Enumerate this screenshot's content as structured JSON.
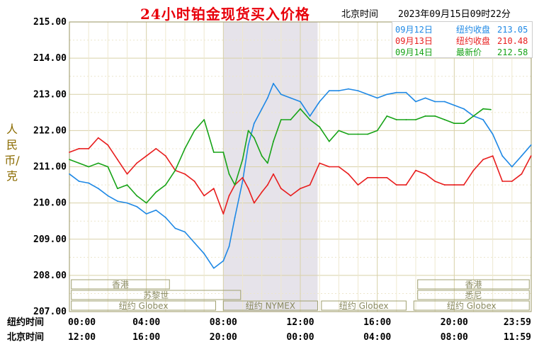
{
  "header": {
    "title": "24小时铂金现货买入价格",
    "beijing_time_label": "北京时间",
    "timestamp": "2023年09月15日09时22分"
  },
  "chart_data": {
    "type": "line",
    "title": "24小时铂金现货买入价格",
    "ylabel": "人民币/克",
    "ylim": [
      207,
      215
    ],
    "y_ticks": [
      "215.00",
      "214.00",
      "213.00",
      "212.00",
      "211.00",
      "210.00",
      "209.00",
      "208.00",
      "207.00"
    ],
    "x_range_hours": [
      0,
      24
    ],
    "x_rows": [
      {
        "label": "纽约时间",
        "ticks": [
          "00:00",
          "04:00",
          "08:00",
          "12:00",
          "16:00",
          "20:00",
          "23:59"
        ]
      },
      {
        "label": "北京时间",
        "ticks": [
          "12:00",
          "16:00",
          "20:00",
          "00:00",
          "04:00",
          "08:00",
          "11:59"
        ]
      }
    ],
    "highlight_band_hours": [
      8.0,
      12.9
    ],
    "grid": "on",
    "legend_position": "top-right",
    "sessions": [
      {
        "name": "香港",
        "row": 1,
        "start": 0.1,
        "end": 5.2
      },
      {
        "name": "苏黎世",
        "row": 2,
        "start": 0.1,
        "end": 8.9
      },
      {
        "name": "纽约 Globex",
        "row": 3,
        "start": 0.1,
        "end": 7.6
      },
      {
        "name": "纽约 NYMEX",
        "row": 3,
        "start": 8.0,
        "end": 12.9
      },
      {
        "name": "纽约 Globex",
        "row": 3,
        "start": 13.1,
        "end": 17.5
      },
      {
        "name": "香港",
        "row": 1,
        "start": 18.1,
        "end": 23.9
      },
      {
        "name": "悉尼",
        "row": 2,
        "start": 18.1,
        "end": 23.9
      },
      {
        "name": "纽约 Globex",
        "row": 3,
        "start": 17.9,
        "end": 23.9
      }
    ],
    "series": [
      {
        "name": "09月12日",
        "legend_label": "纽约收盘",
        "legend_value": "213.05",
        "color": "#1e88e5",
        "points": [
          [
            0,
            210.8
          ],
          [
            0.5,
            210.6
          ],
          [
            1.0,
            210.55
          ],
          [
            1.5,
            210.4
          ],
          [
            2.0,
            210.2
          ],
          [
            2.5,
            210.05
          ],
          [
            3.0,
            210.0
          ],
          [
            3.5,
            209.9
          ],
          [
            4.0,
            209.7
          ],
          [
            4.5,
            209.8
          ],
          [
            5.0,
            209.6
          ],
          [
            5.5,
            209.3
          ],
          [
            6.0,
            209.2
          ],
          [
            6.5,
            208.9
          ],
          [
            7.0,
            208.6
          ],
          [
            7.5,
            208.2
          ],
          [
            8.0,
            208.4
          ],
          [
            8.3,
            208.8
          ],
          [
            8.6,
            209.6
          ],
          [
            9.0,
            210.6
          ],
          [
            9.3,
            211.6
          ],
          [
            9.6,
            212.2
          ],
          [
            10.0,
            212.6
          ],
          [
            10.3,
            212.9
          ],
          [
            10.6,
            213.3
          ],
          [
            11.0,
            213.0
          ],
          [
            11.5,
            212.9
          ],
          [
            12.0,
            212.8
          ],
          [
            12.5,
            212.4
          ],
          [
            13.0,
            212.8
          ],
          [
            13.5,
            213.1
          ],
          [
            14.0,
            213.1
          ],
          [
            14.5,
            213.15
          ],
          [
            15.0,
            213.1
          ],
          [
            15.5,
            213.0
          ],
          [
            16.0,
            212.9
          ],
          [
            16.5,
            213.0
          ],
          [
            17.0,
            213.05
          ],
          [
            17.5,
            213.05
          ],
          [
            18.0,
            212.8
          ],
          [
            18.5,
            212.9
          ],
          [
            19.0,
            212.8
          ],
          [
            19.5,
            212.8
          ],
          [
            20.0,
            212.7
          ],
          [
            20.5,
            212.6
          ],
          [
            21.0,
            212.4
          ],
          [
            21.5,
            212.3
          ],
          [
            22.0,
            211.9
          ],
          [
            22.5,
            211.3
          ],
          [
            23.0,
            211.0
          ],
          [
            23.5,
            211.3
          ],
          [
            23.99,
            211.6
          ]
        ]
      },
      {
        "name": "09月13日",
        "legend_label": "纽约收盘",
        "legend_value": "210.48",
        "color": "#e81e1e",
        "points": [
          [
            0,
            211.4
          ],
          [
            0.5,
            211.5
          ],
          [
            1.0,
            211.5
          ],
          [
            1.5,
            211.8
          ],
          [
            2.0,
            211.6
          ],
          [
            2.5,
            211.2
          ],
          [
            3.0,
            210.8
          ],
          [
            3.5,
            211.1
          ],
          [
            4.0,
            211.3
          ],
          [
            4.5,
            211.5
          ],
          [
            5.0,
            211.3
          ],
          [
            5.5,
            210.9
          ],
          [
            6.0,
            210.8
          ],
          [
            6.5,
            210.6
          ],
          [
            7.0,
            210.2
          ],
          [
            7.5,
            210.4
          ],
          [
            8.0,
            209.7
          ],
          [
            8.3,
            210.2
          ],
          [
            8.6,
            210.5
          ],
          [
            9.0,
            210.7
          ],
          [
            9.3,
            210.4
          ],
          [
            9.6,
            210.0
          ],
          [
            10.0,
            210.3
          ],
          [
            10.3,
            210.5
          ],
          [
            10.6,
            210.8
          ],
          [
            11.0,
            210.4
          ],
          [
            11.5,
            210.2
          ],
          [
            12.0,
            210.4
          ],
          [
            12.5,
            210.5
          ],
          [
            13.0,
            211.1
          ],
          [
            13.5,
            211.0
          ],
          [
            14.0,
            211.0
          ],
          [
            14.5,
            210.8
          ],
          [
            15.0,
            210.5
          ],
          [
            15.5,
            210.7
          ],
          [
            16.0,
            210.7
          ],
          [
            16.5,
            210.7
          ],
          [
            17.0,
            210.5
          ],
          [
            17.5,
            210.5
          ],
          [
            18.0,
            210.9
          ],
          [
            18.5,
            210.8
          ],
          [
            19.0,
            210.6
          ],
          [
            19.5,
            210.5
          ],
          [
            20.0,
            210.5
          ],
          [
            20.5,
            210.5
          ],
          [
            21.0,
            210.9
          ],
          [
            21.5,
            211.2
          ],
          [
            22.0,
            211.3
          ],
          [
            22.5,
            210.6
          ],
          [
            23.0,
            210.6
          ],
          [
            23.5,
            210.8
          ],
          [
            23.99,
            211.3
          ]
        ]
      },
      {
        "name": "09月14日",
        "legend_label": "最新价",
        "legend_value": "212.58",
        "color": "#17a317",
        "points": [
          [
            0,
            211.2
          ],
          [
            0.5,
            211.1
          ],
          [
            1.0,
            211.0
          ],
          [
            1.5,
            211.1
          ],
          [
            2.0,
            211.0
          ],
          [
            2.5,
            210.4
          ],
          [
            3.0,
            210.5
          ],
          [
            3.5,
            210.2
          ],
          [
            4.0,
            210.0
          ],
          [
            4.5,
            210.3
          ],
          [
            5.0,
            210.5
          ],
          [
            5.5,
            210.9
          ],
          [
            6.0,
            211.5
          ],
          [
            6.5,
            212.0
          ],
          [
            7.0,
            212.3
          ],
          [
            7.5,
            211.4
          ],
          [
            8.0,
            211.4
          ],
          [
            8.3,
            210.8
          ],
          [
            8.6,
            210.5
          ],
          [
            9.0,
            211.2
          ],
          [
            9.3,
            212.0
          ],
          [
            9.6,
            211.8
          ],
          [
            10.0,
            211.3
          ],
          [
            10.3,
            211.1
          ],
          [
            10.6,
            211.7
          ],
          [
            11.0,
            212.3
          ],
          [
            11.5,
            212.3
          ],
          [
            12.0,
            212.6
          ],
          [
            12.5,
            212.3
          ],
          [
            13.0,
            212.1
          ],
          [
            13.5,
            211.7
          ],
          [
            14.0,
            212.0
          ],
          [
            14.5,
            211.9
          ],
          [
            15.0,
            211.9
          ],
          [
            15.5,
            211.9
          ],
          [
            16.0,
            212.0
          ],
          [
            16.5,
            212.4
          ],
          [
            17.0,
            212.3
          ],
          [
            17.5,
            212.3
          ],
          [
            18.0,
            212.3
          ],
          [
            18.5,
            212.4
          ],
          [
            19.0,
            212.4
          ],
          [
            19.5,
            212.3
          ],
          [
            20.0,
            212.2
          ],
          [
            20.5,
            212.2
          ],
          [
            21.0,
            212.4
          ],
          [
            21.5,
            212.6
          ],
          [
            21.9,
            212.58
          ]
        ]
      }
    ]
  }
}
